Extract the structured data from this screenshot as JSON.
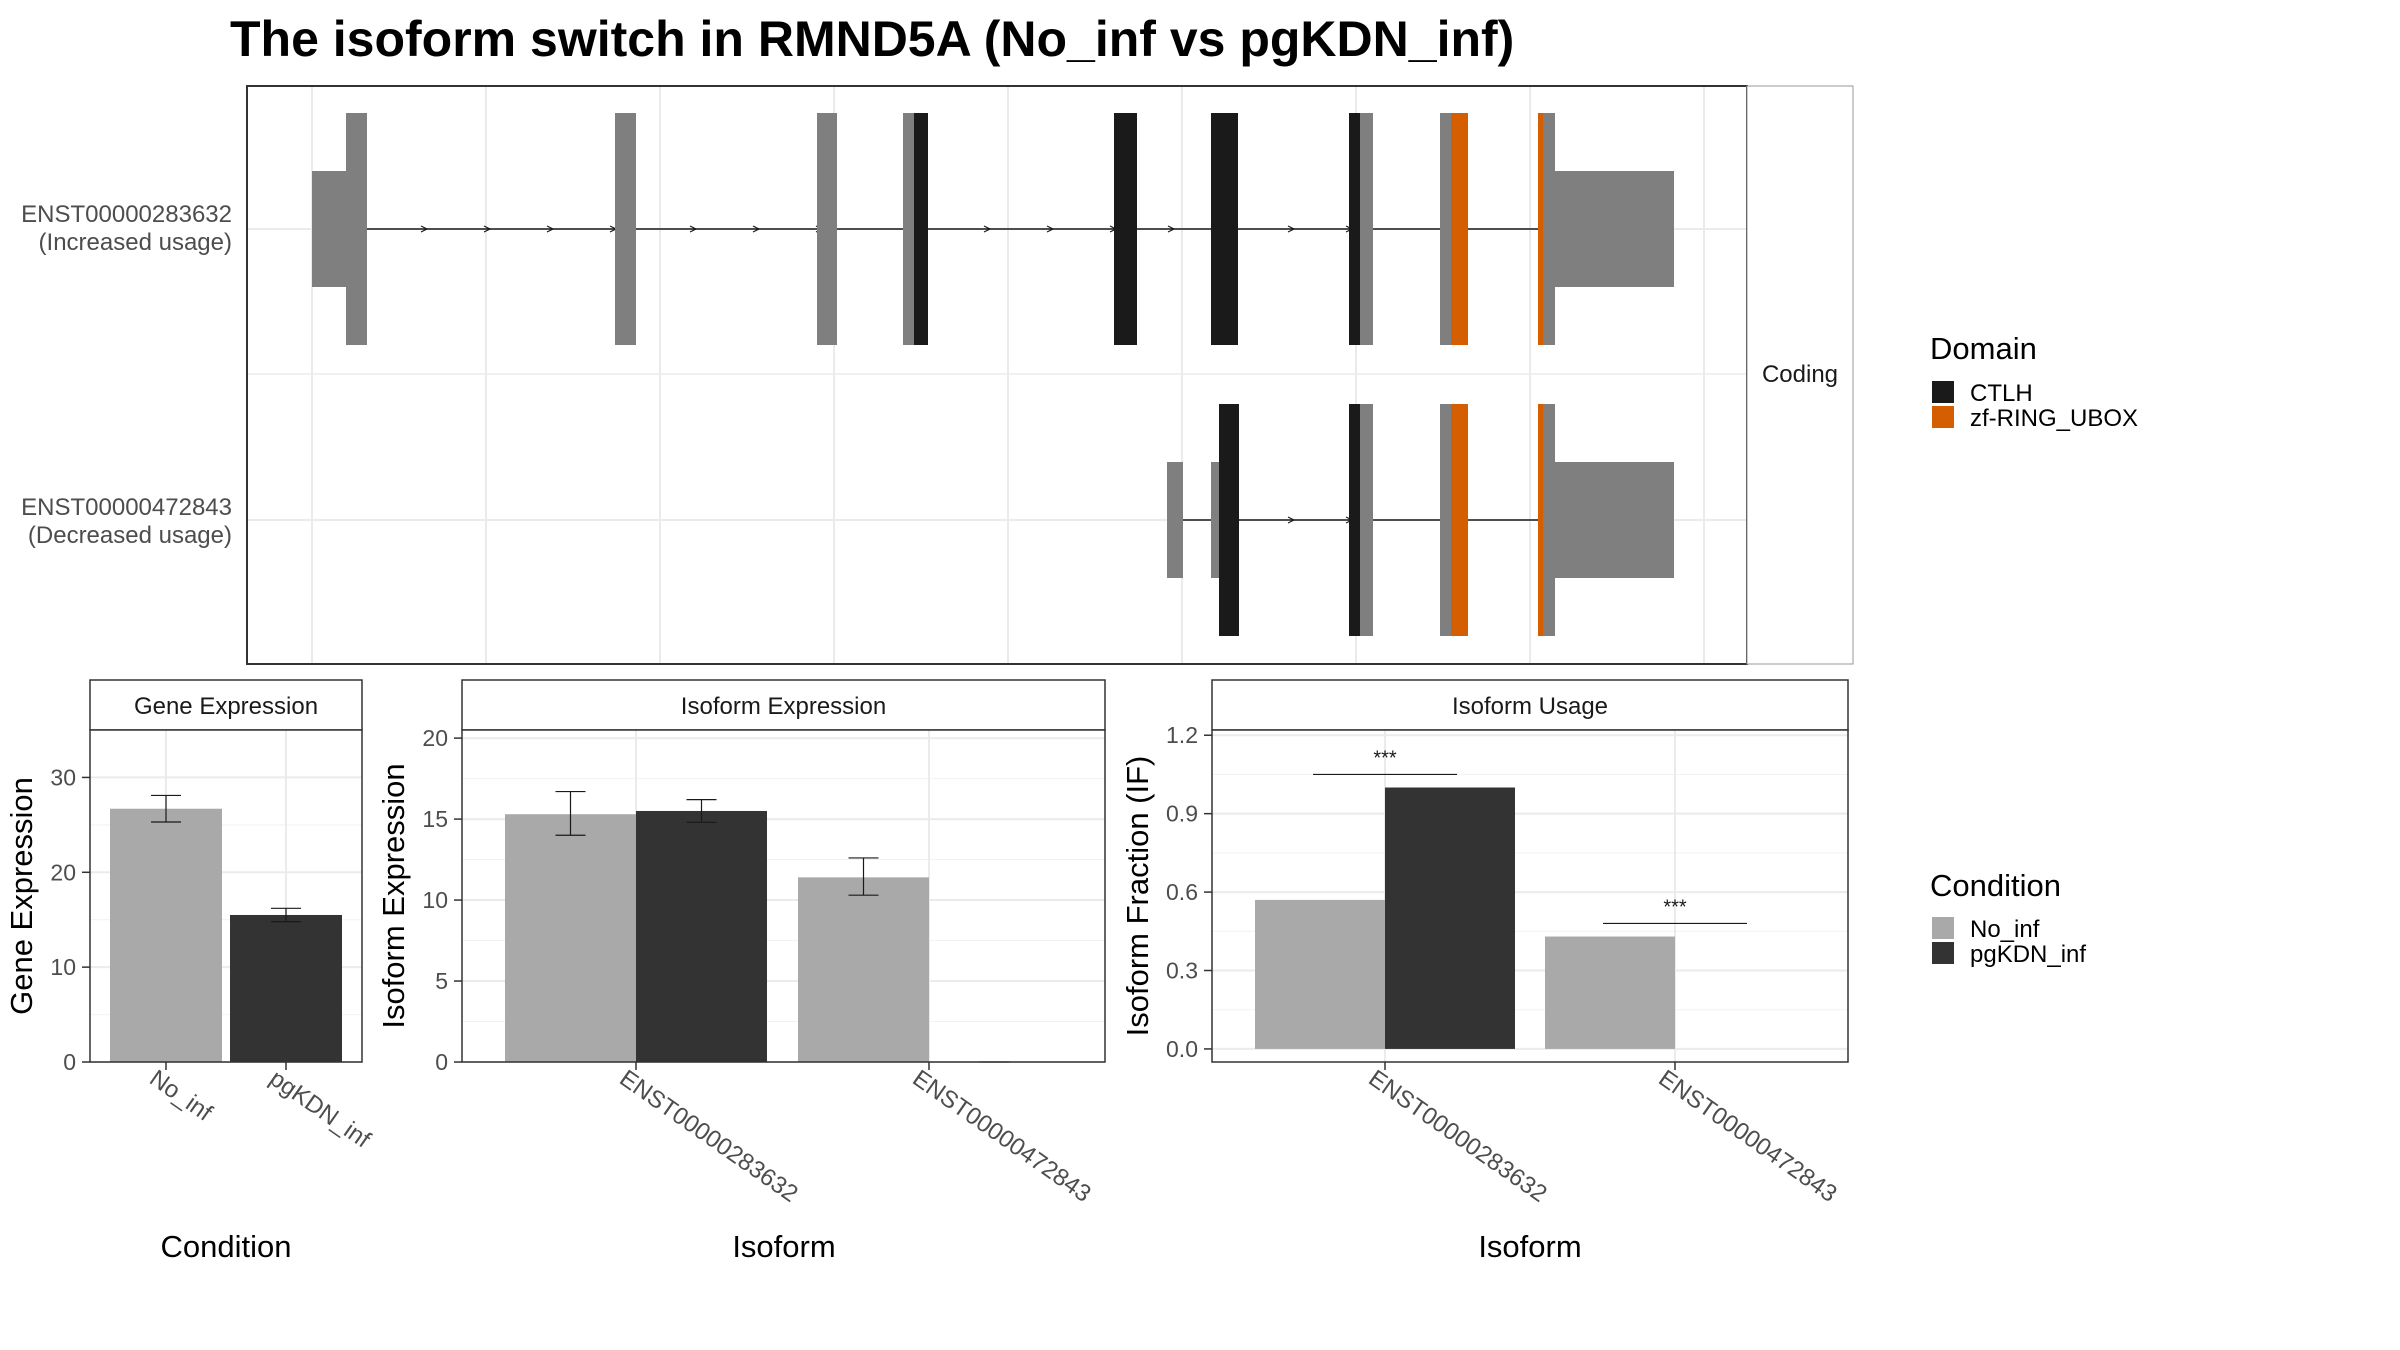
{
  "title": "The isoform switch in RMND5A (No_inf vs pgKDN_inf)",
  "colors": {
    "utr_gray": "#7f7f7f",
    "ctlh": "#1a1a1a",
    "zf_ring_ubox": "#d55e00",
    "no_inf": "#a9a9a9",
    "pgkdn_inf": "#333333",
    "grid": "#ebebeb",
    "panel_border": "#333333",
    "strip_border": "#999999"
  },
  "structure": {
    "facet_label": "Coding",
    "transcripts": [
      {
        "id": "ENST00000283632",
        "usage": "(Increased usage)"
      },
      {
        "id": "ENST00000472843",
        "usage": "(Decreased usage)"
      }
    ]
  },
  "domain_legend": {
    "title": "Domain",
    "items": [
      {
        "label": "CTLH",
        "color": "#1a1a1a"
      },
      {
        "label": "zf-RING_UBOX",
        "color": "#d55e00"
      }
    ]
  },
  "condition_legend": {
    "title": "Condition",
    "items": [
      {
        "label": "No_inf",
        "color": "#a9a9a9"
      },
      {
        "label": "pgKDN_inf",
        "color": "#333333"
      }
    ]
  },
  "chart_data": [
    {
      "type": "bar",
      "strip": "Gene Expression",
      "xlabel": "Condition",
      "ylabel": "Gene Expression",
      "categories": [
        "No_inf",
        "pgKDN_inf"
      ],
      "series": [
        {
          "name": "No_inf",
          "values": [
            26.7,
            null
          ],
          "errors": [
            [
              25.3,
              28.1
            ],
            null
          ]
        },
        {
          "name": "pgKDN_inf",
          "values": [
            null,
            15.5
          ],
          "errors": [
            null,
            [
              14.8,
              16.2
            ]
          ]
        }
      ],
      "ylim": [
        0,
        35
      ],
      "yticks": [
        0,
        10,
        20,
        30
      ]
    },
    {
      "type": "bar",
      "strip": "Isoform Expression",
      "xlabel": "Isoform",
      "ylabel": "Isoform Expression",
      "categories": [
        "ENST00000283632",
        "ENST00000472843"
      ],
      "series": [
        {
          "name": "No_inf",
          "values": [
            15.3,
            11.4
          ],
          "errors": [
            [
              14.0,
              16.7
            ],
            [
              10.3,
              12.6
            ]
          ]
        },
        {
          "name": "pgKDN_inf",
          "values": [
            15.5,
            0.0
          ],
          "errors": [
            [
              14.8,
              16.2
            ],
            null
          ]
        }
      ],
      "ylim": [
        0,
        20.5
      ],
      "yticks": [
        0,
        5,
        10,
        15,
        20
      ]
    },
    {
      "type": "bar",
      "strip": "Isoform Usage",
      "xlabel": "Isoform",
      "ylabel": "Isoform Fraction (IF)",
      "categories": [
        "ENST00000283632",
        "ENST00000472843"
      ],
      "series": [
        {
          "name": "No_inf",
          "values": [
            0.57,
            0.43
          ]
        },
        {
          "name": "pgKDN_inf",
          "values": [
            1.0,
            0.0
          ]
        }
      ],
      "significance": [
        {
          "category": "ENST00000283632",
          "label": "***",
          "y": 1.05
        },
        {
          "category": "ENST00000472843",
          "label": "***",
          "y": 0.48
        }
      ],
      "ylim": [
        -0.05,
        1.22
      ],
      "yticks": [
        0.0,
        0.3,
        0.6,
        0.9,
        1.2
      ],
      "ytick_labels": [
        "0.0",
        "0.3",
        "0.6",
        "0.9",
        "1.2"
      ]
    }
  ]
}
